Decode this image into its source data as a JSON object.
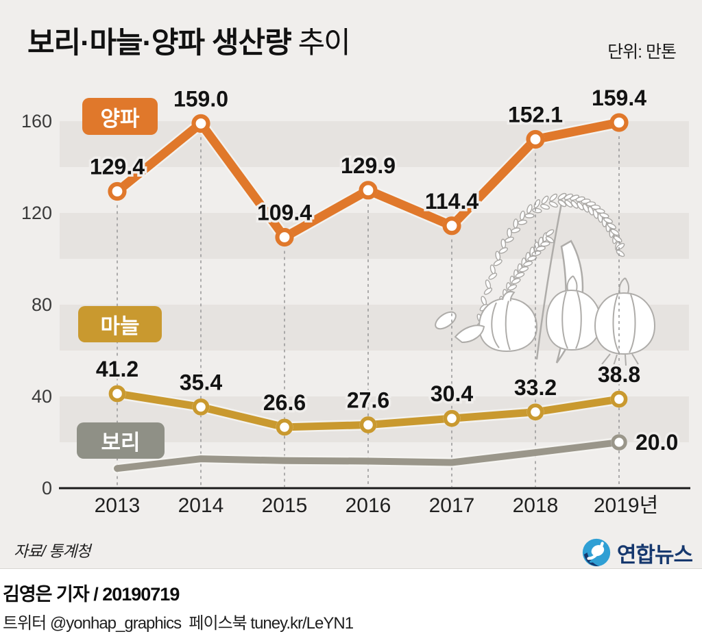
{
  "header": {
    "title_main": "보리·마늘·양파 생산량",
    "title_sub": " 추이",
    "unit_label": "단위: 만톤"
  },
  "chart_data": {
    "type": "line",
    "title": "보리·마늘·양파 생산량 추이",
    "unit": "만톤",
    "categories": [
      "2013",
      "2014",
      "2015",
      "2016",
      "2017",
      "2018",
      "2019년"
    ],
    "y_ticks": [
      160,
      120,
      80,
      40,
      0
    ],
    "ylim": [
      0,
      170
    ],
    "grid": "vertical-dashed",
    "legend_position": "on-chart-badges",
    "series": [
      {
        "id": "onion",
        "name": "양파",
        "color": "#e0782b",
        "values": [
          129.4,
          159.0,
          109.4,
          129.9,
          114.4,
          152.1,
          159.4
        ],
        "labels": [
          "129.4",
          "159.0",
          "109.4",
          "129.9",
          "114.4",
          "152.1",
          "159.4"
        ],
        "markers": "all"
      },
      {
        "id": "garlic",
        "name": "마늘",
        "color": "#c9992f",
        "values": [
          41.2,
          35.4,
          26.6,
          27.6,
          30.4,
          33.2,
          38.8
        ],
        "labels": [
          "41.2",
          "35.4",
          "26.6",
          "27.6",
          "30.4",
          "33.2",
          "38.8"
        ],
        "markers": "all"
      },
      {
        "id": "barley",
        "name": "보리",
        "color": "#9a968a",
        "values": [
          8.6,
          12.8,
          12.0,
          11.8,
          11.2,
          15.5,
          20.0
        ],
        "labels": [
          "",
          "",
          "",
          "",
          "",
          "",
          "20.0"
        ],
        "markers": "last"
      }
    ],
    "legend_badges": [
      {
        "id": "onion",
        "label": "양파",
        "color": "#e0782b"
      },
      {
        "id": "garlic",
        "label": "마늘",
        "color": "#c9992f"
      },
      {
        "id": "barley",
        "label": "보리",
        "color": "#8f9086"
      }
    ]
  },
  "footer": {
    "source": "자료/ 통계청",
    "logo_text": "연합뉴스",
    "byline": "김영은 기자 / 20190719",
    "social": "트위터 @yonhap_graphics  페이스북 tuney.kr/LeYN1"
  }
}
